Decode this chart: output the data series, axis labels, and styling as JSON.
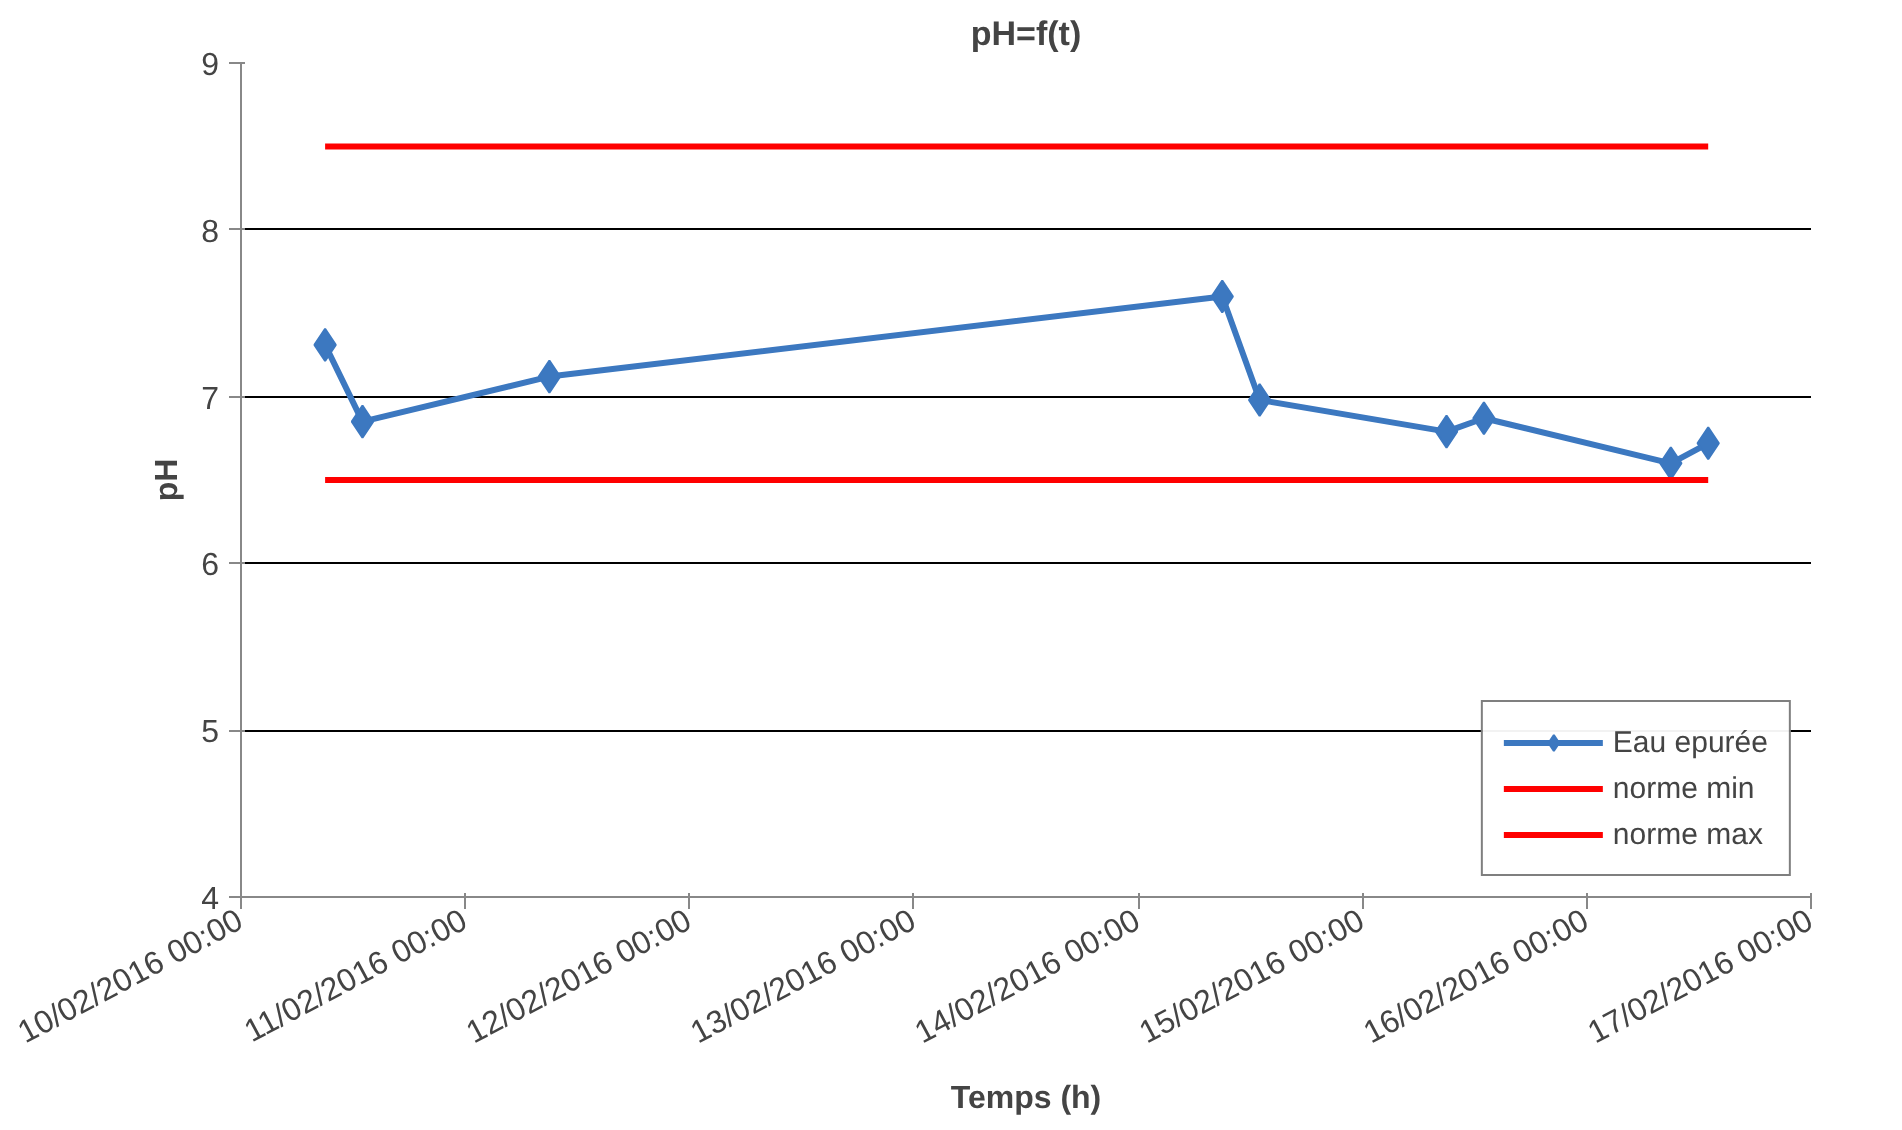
{
  "chart_data": {
    "type": "line",
    "title": "pH=f(t)",
    "xlabel": "Temps (h)",
    "ylabel": "pH",
    "xlim": [
      "2016-02-10T00:00",
      "2016-02-17T00:00"
    ],
    "xticks": [
      {
        "value": "2016-02-10T00:00",
        "label": "10/02/2016 00:00"
      },
      {
        "value": "2016-02-11T00:00",
        "label": "11/02/2016 00:00"
      },
      {
        "value": "2016-02-12T00:00",
        "label": "12/02/2016 00:00"
      },
      {
        "value": "2016-02-13T00:00",
        "label": "13/02/2016 00:00"
      },
      {
        "value": "2016-02-14T00:00",
        "label": "14/02/2016 00:00"
      },
      {
        "value": "2016-02-15T00:00",
        "label": "15/02/2016 00:00"
      },
      {
        "value": "2016-02-16T00:00",
        "label": "16/02/2016 00:00"
      },
      {
        "value": "2016-02-17T00:00",
        "label": "17/02/2016 00:00"
      }
    ],
    "ylim": [
      4,
      9
    ],
    "yticks": [
      4,
      5,
      6,
      7,
      8,
      9
    ],
    "grid": "y",
    "legend": "bottom right",
    "series": [
      {
        "name": "Eau epurée",
        "color": "#3c78c0",
        "marker": "diamond",
        "x": [
          "2016-02-10T09:00",
          "2016-02-10T13:00",
          "2016-02-11T09:00",
          "2016-02-14T09:00",
          "2016-02-14T13:00",
          "2016-02-15T09:00",
          "2016-02-15T13:00",
          "2016-02-16T09:00",
          "2016-02-16T13:00"
        ],
        "values": [
          7.31,
          6.85,
          7.12,
          7.6,
          6.98,
          6.79,
          6.87,
          6.6,
          6.72
        ]
      },
      {
        "name": "norme min",
        "color": "#ff0000",
        "marker": "none",
        "x": [
          "2016-02-10T09:00",
          "2016-02-16T13:00"
        ],
        "values": [
          6.5,
          6.5
        ]
      },
      {
        "name": "norme max",
        "color": "#ff0000",
        "marker": "none",
        "x": [
          "2016-02-10T09:00",
          "2016-02-16T13:00"
        ],
        "values": [
          8.5,
          8.5
        ]
      }
    ]
  }
}
